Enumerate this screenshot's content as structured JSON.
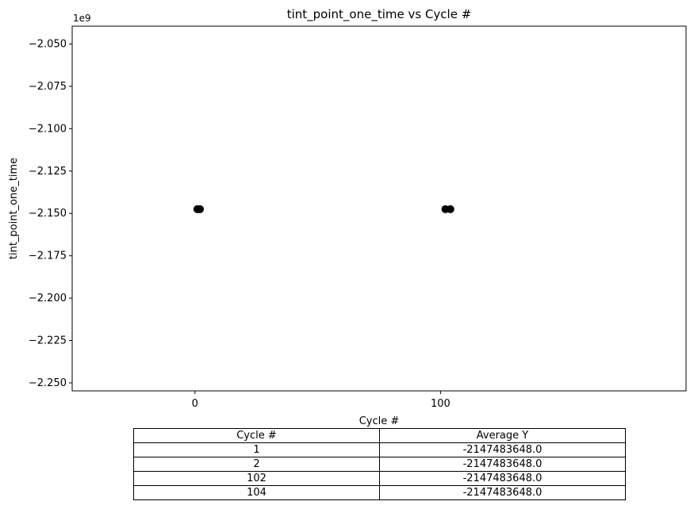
{
  "chart_data": {
    "type": "scatter",
    "title": "tint_point_one_time vs Cycle #",
    "xlabel": "Cycle #",
    "ylabel": "tint_point_one_time",
    "y_offset_label": "1e9",
    "xlim": [
      -50,
      200
    ],
    "ylim": [
      -2.2547,
      -2.0395
    ],
    "y_scale_exponent": 9,
    "x_ticks": [
      0,
      100
    ],
    "x_tick_labels": [
      "0",
      "100"
    ],
    "y_ticks": [
      -2.05,
      -2.075,
      -2.1,
      -2.125,
      -2.15,
      -2.175,
      -2.2,
      -2.225,
      -2.25
    ],
    "y_tick_labels": [
      "−2.050",
      "−2.075",
      "−2.100",
      "−2.125",
      "−2.150",
      "−2.175",
      "−2.200",
      "−2.225",
      "−2.250"
    ],
    "grid": false,
    "marker_color": "#000000",
    "points": [
      {
        "x": 1,
        "y": -2147483648.0
      },
      {
        "x": 2,
        "y": -2147483648.0
      },
      {
        "x": 102,
        "y": -2147483648.0
      },
      {
        "x": 104,
        "y": -2147483648.0
      }
    ]
  },
  "table": {
    "headers": [
      "Cycle #",
      "Average Y"
    ],
    "rows": [
      [
        "1",
        "-2147483648.0"
      ],
      [
        "2",
        "-2147483648.0"
      ],
      [
        "102",
        "-2147483648.0"
      ],
      [
        "104",
        "-2147483648.0"
      ]
    ]
  }
}
